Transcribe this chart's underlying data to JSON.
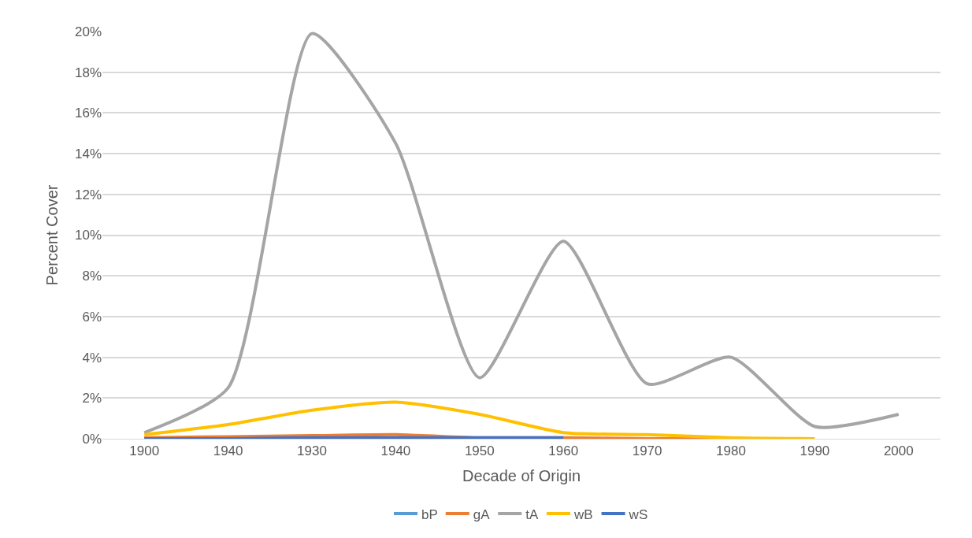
{
  "chart_data": {
    "type": "line",
    "xlabel": "Decade of Origin",
    "ylabel": "Percent Cover",
    "categories": [
      "1900",
      "1940",
      "1930",
      "1940",
      "1950",
      "1960",
      "1970",
      "1980",
      "1990",
      "2000"
    ],
    "series": [
      {
        "name": "bP",
        "color": "#5b9bd5",
        "values": [
          null,
          null,
          null,
          null,
          null,
          null,
          null,
          null,
          null,
          null
        ]
      },
      {
        "name": "gA",
        "color": "#ed7d31",
        "values": [
          0.05,
          0.1,
          0.15,
          0.2,
          0.05,
          0.05,
          0.0,
          0.0,
          null,
          null
        ]
      },
      {
        "name": "tA",
        "color": "#a5a5a5",
        "values": [
          0.3,
          2.5,
          19.9,
          14.5,
          3.0,
          9.7,
          2.7,
          4.0,
          0.6,
          1.2
        ]
      },
      {
        "name": "wB",
        "color": "#ffc000",
        "values": [
          0.2,
          0.7,
          1.4,
          1.8,
          1.2,
          0.3,
          0.2,
          0.05,
          0.0,
          null
        ]
      },
      {
        "name": "wS",
        "color": "#4472c4",
        "values": [
          0.0,
          0.0,
          0.05,
          0.05,
          0.05,
          0.05,
          null,
          null,
          null,
          null
        ]
      }
    ],
    "ylim": [
      0,
      20
    ],
    "yticks": [
      {
        "value": 0,
        "label": "0%"
      },
      {
        "value": 2,
        "label": "2%"
      },
      {
        "value": 4,
        "label": "4%"
      },
      {
        "value": 6,
        "label": "6%"
      },
      {
        "value": 8,
        "label": "8%"
      },
      {
        "value": 10,
        "label": "10%"
      },
      {
        "value": 12,
        "label": "12%"
      },
      {
        "value": 14,
        "label": "14%"
      },
      {
        "value": 16,
        "label": "16%"
      },
      {
        "value": 18,
        "label": "18%"
      },
      {
        "value": 20,
        "label": "20%"
      }
    ],
    "grid": "y",
    "legend": "bottom",
    "marker": "none",
    "line_style": "solid"
  }
}
